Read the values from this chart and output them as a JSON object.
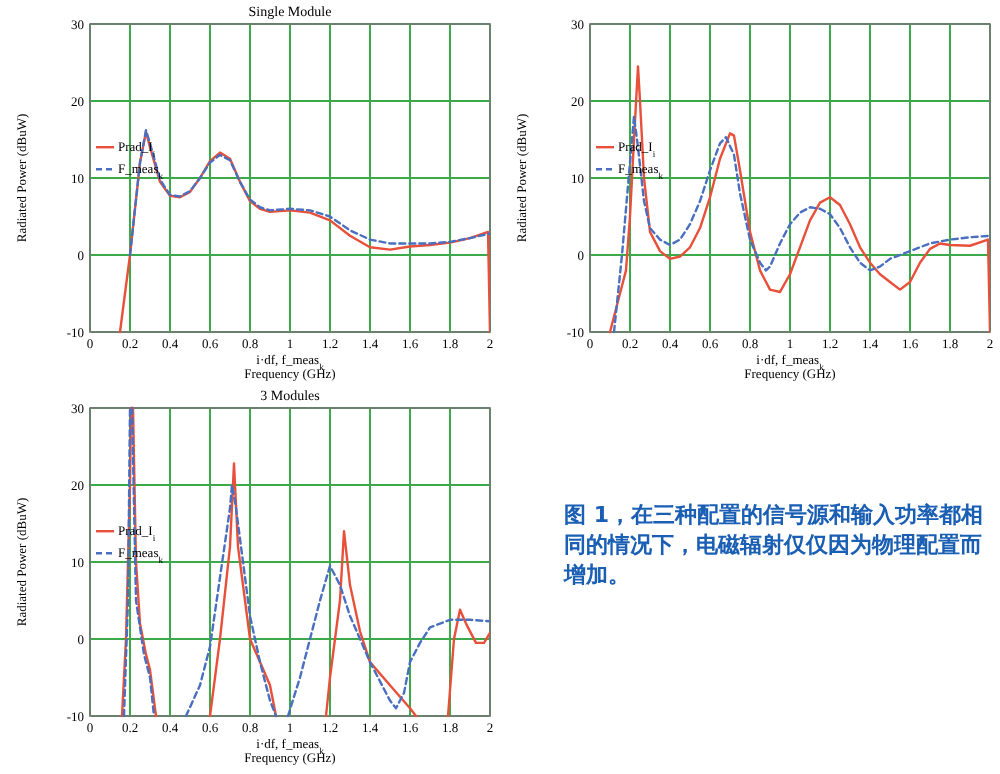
{
  "chart_data": [
    {
      "type": "line",
      "title": "Single Module",
      "xlabel": "i·df, f_meas$_{k}$\nFrequency (GHz)",
      "ylabel": "Radiated Power (dBuW)",
      "xlim": [
        0,
        2
      ],
      "ylim": [
        -10,
        30
      ],
      "xticks": [
        0,
        0.2,
        0.4,
        0.6,
        0.8,
        1,
        1.2,
        1.4,
        1.6,
        1.8,
        2
      ],
      "yticks": [
        -10,
        0,
        10,
        20,
        30
      ],
      "grid": true,
      "legend": "left",
      "series": [
        {
          "name": "Prad_I$_{i}$",
          "color": "#e8503a",
          "line_style": "solid",
          "x": [
            0.15,
            0.2,
            0.25,
            0.28,
            0.3,
            0.35,
            0.4,
            0.45,
            0.5,
            0.55,
            0.6,
            0.65,
            0.7,
            0.75,
            0.8,
            0.85,
            0.9,
            1.0,
            1.1,
            1.2,
            1.3,
            1.4,
            1.5,
            1.6,
            1.7,
            1.8,
            1.9,
            1.99,
            2
          ],
          "values": [
            -10,
            0,
            12,
            16,
            14,
            9.5,
            7.7,
            7.5,
            8.2,
            10,
            12.2,
            13.3,
            12.5,
            9.5,
            7,
            6,
            5.6,
            5.8,
            5.5,
            4.5,
            2.5,
            1,
            0.7,
            1.1,
            1.3,
            1.6,
            2.2,
            3,
            -10
          ]
        },
        {
          "name": "F_meas$_{k}$",
          "color": "#4a6fc0",
          "line_style": "dashed",
          "x": [
            0.2,
            0.25,
            0.28,
            0.3,
            0.35,
            0.4,
            0.45,
            0.5,
            0.55,
            0.6,
            0.65,
            0.7,
            0.75,
            0.8,
            0.85,
            0.9,
            1.0,
            1.1,
            1.2,
            1.3,
            1.4,
            1.5,
            1.6,
            1.7,
            1.8,
            1.9,
            2
          ],
          "values": [
            0,
            12,
            16.2,
            14.5,
            9.8,
            7.8,
            7.6,
            8.3,
            10,
            12,
            13,
            12.3,
            9.5,
            7.2,
            6.2,
            5.8,
            6,
            5.8,
            5,
            3.2,
            2,
            1.5,
            1.5,
            1.5,
            1.7,
            2.2,
            2.8
          ]
        }
      ]
    },
    {
      "type": "line",
      "xlabel": "i·df, f_meas$_{k}$\nFrequency (GHz)",
      "ylabel": "Radiated Power (dBuW)",
      "xlim": [
        0,
        2
      ],
      "ylim": [
        -10,
        30
      ],
      "xticks": [
        0,
        0.2,
        0.4,
        0.6,
        0.8,
        1,
        1.2,
        1.4,
        1.6,
        1.8,
        2
      ],
      "yticks": [
        -10,
        0,
        10,
        20,
        30
      ],
      "grid": true,
      "legend": "left",
      "series": [
        {
          "name": "Prad_I$_{i}$",
          "color": "#e8503a",
          "line_style": "solid",
          "x": [
            0.1,
            0.15,
            0.18,
            0.2,
            0.22,
            0.24,
            0.25,
            0.27,
            0.3,
            0.35,
            0.4,
            0.45,
            0.5,
            0.55,
            0.6,
            0.65,
            0.7,
            0.72,
            0.75,
            0.8,
            0.85,
            0.9,
            0.95,
            1.0,
            1.05,
            1.1,
            1.15,
            1.2,
            1.25,
            1.3,
            1.35,
            1.4,
            1.45,
            1.5,
            1.55,
            1.6,
            1.65,
            1.7,
            1.75,
            1.8,
            1.9,
            1.99,
            2
          ],
          "values": [
            -10,
            -5,
            -2,
            5,
            15,
            24.5,
            20,
            10,
            3,
            0.5,
            -0.5,
            -0.2,
            1,
            3.5,
            7.5,
            12.5,
            15.8,
            15.5,
            11,
            3,
            -2,
            -4.5,
            -4.8,
            -2.5,
            1,
            4.5,
            6.8,
            7.5,
            6.5,
            4,
            1,
            -1,
            -2.5,
            -3.5,
            -4.5,
            -3.5,
            -1,
            0.8,
            1.5,
            1.3,
            1.2,
            2,
            -10
          ]
        },
        {
          "name": "F_meas$_{k}$",
          "color": "#4a6fc0",
          "line_style": "dashed",
          "x": [
            0.12,
            0.16,
            0.2,
            0.22,
            0.24,
            0.27,
            0.3,
            0.35,
            0.4,
            0.45,
            0.5,
            0.55,
            0.6,
            0.65,
            0.68,
            0.72,
            0.75,
            0.8,
            0.85,
            0.88,
            0.9,
            0.95,
            1.0,
            1.05,
            1.1,
            1.15,
            1.2,
            1.25,
            1.3,
            1.35,
            1.4,
            1.45,
            1.5,
            1.6,
            1.7,
            1.8,
            1.9,
            2
          ],
          "values": [
            -10,
            0,
            12,
            18,
            14,
            7,
            3.5,
            2,
            1.3,
            2,
            4,
            7,
            11,
            14.5,
            15.3,
            13,
            8,
            2,
            -1,
            -2,
            -1.5,
            1.5,
            4,
            5.5,
            6.2,
            6,
            5.3,
            3.5,
            1,
            -1,
            -2,
            -1.5,
            -0.5,
            0.5,
            1.5,
            2,
            2.3,
            2.5
          ]
        }
      ]
    },
    {
      "type": "line",
      "title": "3 Modules",
      "xlabel": "i·df, f_meas$_{k}$\nFrequency (GHz)",
      "ylabel": "Radiated Power (dBuW)",
      "xlim": [
        0,
        2
      ],
      "ylim": [
        -10,
        30
      ],
      "xticks": [
        0,
        0.2,
        0.4,
        0.6,
        0.8,
        1,
        1.2,
        1.4,
        1.6,
        1.8,
        2
      ],
      "yticks": [
        -10,
        0,
        10,
        20,
        30
      ],
      "grid": true,
      "legend": "left",
      "series": [
        {
          "name": "Prad_I$_{i}$",
          "color": "#e8503a",
          "line_style": "solid",
          "x": [
            0.16,
            0.18,
            0.2,
            0.205,
            0.215,
            0.23,
            0.25,
            0.28,
            0.3,
            0.33,
            null,
            0.6,
            0.65,
            0.7,
            0.72,
            0.74,
            0.8,
            0.85,
            0.9,
            0.93,
            null,
            1.18,
            1.2,
            1.25,
            1.27,
            1.3,
            1.35,
            1.4,
            1.5,
            1.6,
            1.63,
            null,
            1.79,
            1.82,
            1.85,
            1.88,
            1.93,
            1.97,
            2
          ],
          "values": [
            -10,
            0,
            20,
            30,
            30,
            10,
            2,
            -2,
            -4,
            -10,
            null,
            -10,
            0,
            12,
            22.8,
            12,
            0,
            -3,
            -6,
            -10,
            null,
            -10,
            -5,
            5,
            14,
            7,
            1,
            -3,
            -6,
            -9,
            -10,
            null,
            -10,
            0,
            3.8,
            2,
            -0.5,
            -0.5,
            0.8
          ]
        },
        {
          "name": "F_meas$_{k}$",
          "color": "#4a6fc0",
          "line_style": "dashed",
          "x": [
            0.17,
            0.19,
            0.2,
            0.21,
            0.23,
            0.27,
            0.3,
            0.32,
            null,
            0.48,
            0.55,
            0.6,
            0.65,
            0.7,
            0.71,
            0.73,
            0.8,
            0.85,
            0.9,
            0.93,
            null,
            0.99,
            1.05,
            1.1,
            1.15,
            1.2,
            1.25,
            1.3,
            1.4,
            1.5,
            1.53,
            1.57,
            1.6,
            1.65,
            1.7,
            1.8,
            1.9,
            2
          ],
          "values": [
            -10,
            5,
            30,
            30,
            5,
            -2,
            -5,
            -10,
            null,
            -10,
            -6,
            -1,
            8,
            17,
            20,
            17,
            3,
            -3,
            -8,
            -10,
            null,
            -10,
            -5,
            0,
            5,
            9.5,
            7,
            3,
            -3,
            -8,
            -9,
            -7,
            -3,
            -0.5,
            1.5,
            2.5,
            2.5,
            2.3
          ]
        }
      ]
    },
    {
      "type": "other",
      "annotations": [
        "图 1，在三种配置的信号源和输入功率都相同的情况下，电磁辐射仅仅因为物理配置而增加。"
      ]
    }
  ]
}
